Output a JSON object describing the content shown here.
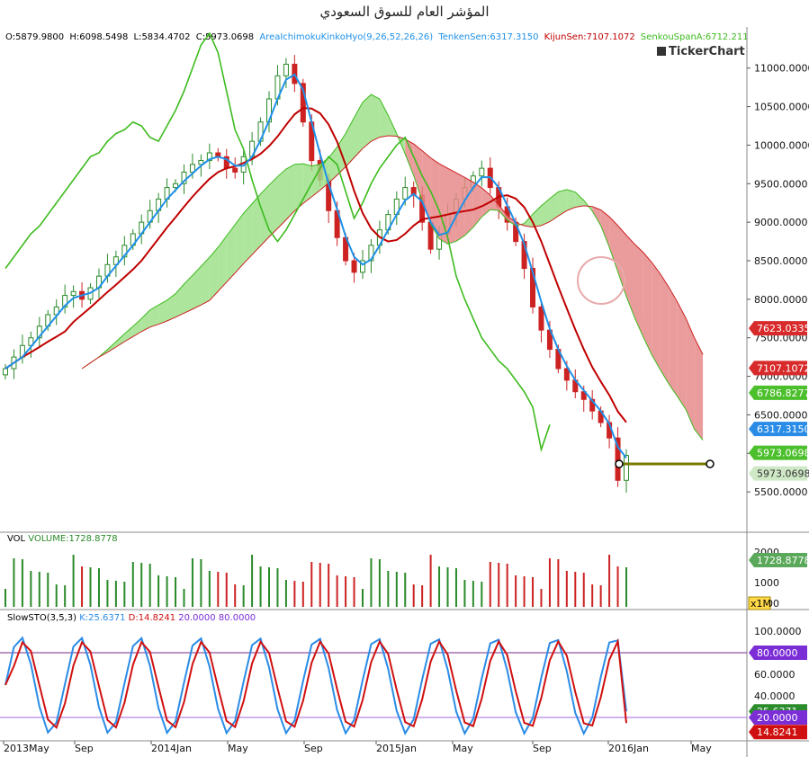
{
  "title": "المؤشر العام للسوق السعودي",
  "logo": "TickerChart",
  "ohlc": {
    "o": "O:5879.9800",
    "h": "H:6098.5498",
    "l": "L:5834.4702",
    "c": "C:5973.0698"
  },
  "ichimoku_header": {
    "name": "AreaIchimokuKinkoHyo(9,26,52,26,26)",
    "tenkan": "TenkenSen:6317.3150",
    "kijun": "KijunSen:7107.1072",
    "senkou": "SenkouSpanA:6712.211"
  },
  "vol_header": {
    "name": "VOL",
    "value": "VOLUME:1728.8778"
  },
  "sto_header": {
    "name": "SlowSTO(3,5,3)",
    "k": "K:25.6371",
    "d": "D:14.8241",
    "l1": "20.0000",
    "l2": "80.0000"
  },
  "colors": {
    "up": "#2a8a2a",
    "down": "#cc2222",
    "tenkan": "#1e90e8",
    "kijun": "#c00000",
    "chikou": "#3dbb1e",
    "cloud_bull": "#9ee08a",
    "cloud_bear": "#e68a8a",
    "sto_k": "#2a8ce6",
    "sto_d": "#d01010",
    "level_line": "#7a2a8a",
    "trend": "#7a7a00"
  },
  "chart_data": [
    {
      "type": "candlestick",
      "title": "المؤشر العام للسوق السعودي",
      "x_ticks": [
        "2013May",
        "Sep",
        "2014Jan",
        "May",
        "Sep",
        "2015Jan",
        "May",
        "Sep",
        "2016Jan",
        "May"
      ],
      "y_ticks": [
        "5500.0000",
        "6000.0000",
        "6500.0000",
        "7000.0000",
        "7500.0000",
        "8000.0000",
        "8500.0000",
        "9000.0000",
        "9500.0000",
        "10000.0000",
        "10500.0000",
        "11000.0000"
      ],
      "ylim": [
        5000,
        11300
      ],
      "last": {
        "open": 5879.98,
        "high": 6098.5498,
        "low": 5834.4702,
        "close": 5973.0698
      },
      "price_tags": [
        {
          "label": "7623.0335",
          "value": 7623.0335,
          "color": "#d82a2a"
        },
        {
          "label": "7107.1072",
          "value": 7107.1072,
          "color": "#d82a2a"
        },
        {
          "label": "6786.8277",
          "value": 6786.8277,
          "color": "#4cbf2c"
        },
        {
          "label": "6317.3150",
          "value": 6317.315,
          "color": "#2a8ce6"
        },
        {
          "label": "5973.0698",
          "value": 5973.0698,
          "color": "#4cbf2c"
        },
        {
          "label": "5973.0698",
          "value": 5973.0698,
          "color": "#cfe9c6"
        }
      ],
      "series_close": [
        7100,
        7250,
        7400,
        7500,
        7650,
        7800,
        7900,
        8050,
        8100,
        8000,
        8150,
        8300,
        8450,
        8550,
        8700,
        8850,
        9000,
        9150,
        9300,
        9450,
        9500,
        9650,
        9750,
        9800,
        9900,
        9850,
        9700,
        9650,
        9850,
        10050,
        10300,
        10600,
        10900,
        11050,
        10800,
        10300,
        9800,
        9550,
        9150,
        8800,
        8500,
        8350,
        8500,
        8700,
        8900,
        9100,
        9300,
        9450,
        9350,
        9000,
        8650,
        8850,
        9100,
        9300,
        9450,
        9600,
        9700,
        9450,
        9200,
        9000,
        8750,
        8400,
        7900,
        7600,
        7350,
        7100,
        6950,
        6800,
        6700,
        6550,
        6400,
        6200,
        5650,
        5973
      ]
    },
    {
      "type": "bar",
      "title": "VOL",
      "y_ticks": [
        "2000",
        "1000",
        "0000"
      ],
      "unit": "x1M",
      "last_value": "1728.8778"
    },
    {
      "type": "line",
      "title": "SlowSTO(3,5,3)",
      "y_ticks": [
        "100.0000",
        "80.0000",
        "60.0000",
        "40.0000",
        "20.0000"
      ],
      "ylim": [
        0,
        110
      ],
      "levels": [
        20,
        80
      ],
      "tags": [
        {
          "label": "80.0000",
          "color": "#7b2ed6"
        },
        {
          "label": "25.6371",
          "color": "#2a8c2a"
        },
        {
          "label": "20.0000",
          "color": "#7b2ed6"
        },
        {
          "label": "14.8241",
          "color": "#d01010"
        }
      ]
    }
  ]
}
